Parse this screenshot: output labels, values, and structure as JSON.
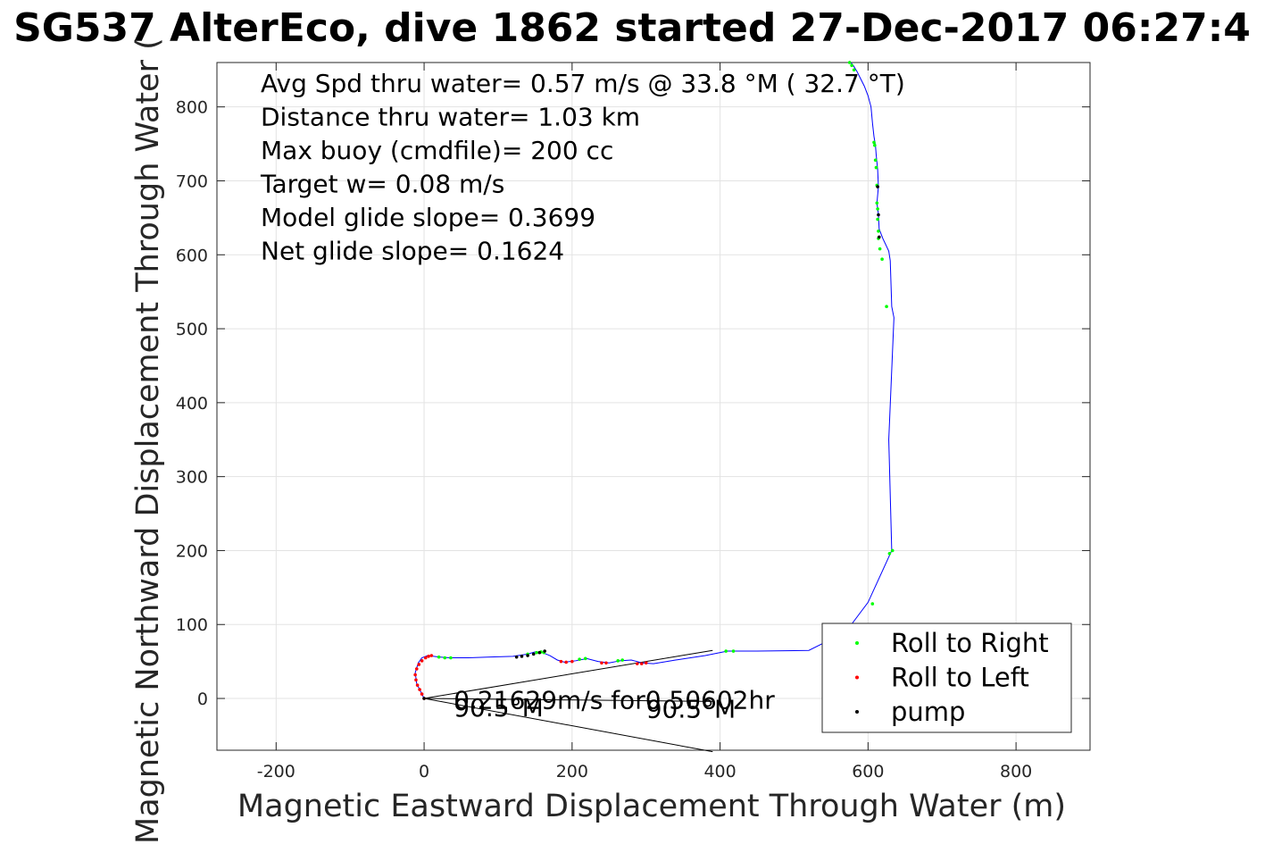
{
  "chart_data": {
    "type": "scatter",
    "title": "SG537 AlterEco, dive 1862 started 27-Dec-2017 06:27:4",
    "xlabel": "Magnetic Eastward Displacement Through Water (m)",
    "ylabel": "Magnetic Northward Displacement Through Water (",
    "xlim": [
      -280,
      900
    ],
    "ylim": [
      -70,
      860
    ],
    "xticks": [
      -200,
      0,
      200,
      400,
      600,
      800
    ],
    "yticks": [
      0,
      100,
      200,
      300,
      400,
      500,
      600,
      700,
      800
    ],
    "grid": true,
    "stats": [
      "Avg Spd thru water=  0.57 m/s @  33.8 °M ( 32.7 °T)",
      "Distance thru water=  1.03 km",
      "Max buoy (cmdfile)= 200 cc",
      "Target w= 0.08 m/s",
      "Model glide slope= 0.3699",
      "Net glide slope= 0.1624"
    ],
    "annotations": [
      {
        "text": "0.21629m/s for0.50602hr",
        "x": 40,
        "y": -2
      },
      {
        "text": "90.5°M",
        "x": 40,
        "y": -12
      },
      {
        "text": "90.5°M",
        "x": 300,
        "y": -14
      }
    ],
    "arrows": [
      {
        "from": [
          0,
          0
        ],
        "to": [
          390,
          65
        ]
      },
      {
        "from": [
          0,
          0
        ],
        "to": [
          390,
          -4
        ]
      },
      {
        "from": [
          0,
          0
        ],
        "to": [
          390,
          -72
        ]
      }
    ],
    "track": {
      "name": "track",
      "color": "#0000ff",
      "x": [
        0,
        -5,
        -10,
        -12,
        -8,
        -3,
        5,
        20,
        35,
        60,
        90,
        120,
        140,
        150,
        160,
        170,
        180,
        190,
        205,
        220,
        235,
        250,
        265,
        280,
        295,
        310,
        340,
        380,
        410,
        450,
        520,
        570,
        600,
        632,
        628,
        635,
        632,
        630,
        628,
        620,
        615,
        614,
        612,
        614,
        613,
        612,
        611,
        610,
        608,
        606,
        604,
        600,
        595,
        590,
        585,
        580,
        575
      ],
      "y": [
        0,
        10,
        20,
        35,
        48,
        55,
        58,
        56,
        55,
        55,
        56,
        57,
        60,
        63,
        62,
        58,
        52,
        49,
        51,
        54,
        50,
        48,
        51,
        52,
        48,
        47,
        52,
        58,
        64,
        64,
        65,
        90,
        130,
        200,
        350,
        515,
        530,
        592,
        605,
        622,
        635,
        655,
        670,
        692,
        715,
        725,
        735,
        748,
        760,
        778,
        800,
        815,
        828,
        838,
        848,
        856,
        862
      ]
    },
    "series": [
      {
        "name": "Roll to Right",
        "color": "#00ff00",
        "x": [
          20,
          28,
          36,
          140,
          152,
          158,
          162,
          210,
          218,
          262,
          268,
          408,
          418,
          606,
          629,
          633,
          625,
          619,
          616,
          614,
          614,
          613,
          613,
          612,
          612,
          611,
          610,
          609,
          608,
          581,
          578,
          575
        ],
        "y": [
          56,
          55,
          55,
          60,
          62,
          63,
          62,
          53,
          54,
          51,
          52,
          64,
          64,
          128,
          196,
          200,
          530,
          594,
          608,
          622,
          632,
          648,
          662,
          670,
          694,
          718,
          728,
          748,
          752,
          850,
          856,
          860
        ]
      },
      {
        "name": "Roll to Left",
        "color": "#ff0000",
        "x": [
          0,
          -3,
          -6,
          -9,
          -11,
          -12,
          -10,
          -7,
          -3,
          2,
          6,
          10,
          185,
          192,
          200,
          240,
          246,
          288,
          294,
          300
        ],
        "y": [
          0,
          6,
          12,
          18,
          25,
          32,
          40,
          46,
          51,
          55,
          57,
          58,
          50,
          49,
          50,
          48,
          48,
          47,
          47,
          48
        ]
      },
      {
        "name": "pump",
        "color": "#000000",
        "x": [
          0,
          125,
          132,
          140,
          148,
          156,
          163,
          615,
          614,
          613
        ],
        "y": [
          0,
          56,
          57,
          58,
          60,
          62,
          64,
          624,
          654,
          692
        ]
      }
    ],
    "legend": {
      "placement": "bottom-right",
      "entries": [
        "Roll to Right",
        "Roll to Left",
        "pump"
      ]
    }
  }
}
